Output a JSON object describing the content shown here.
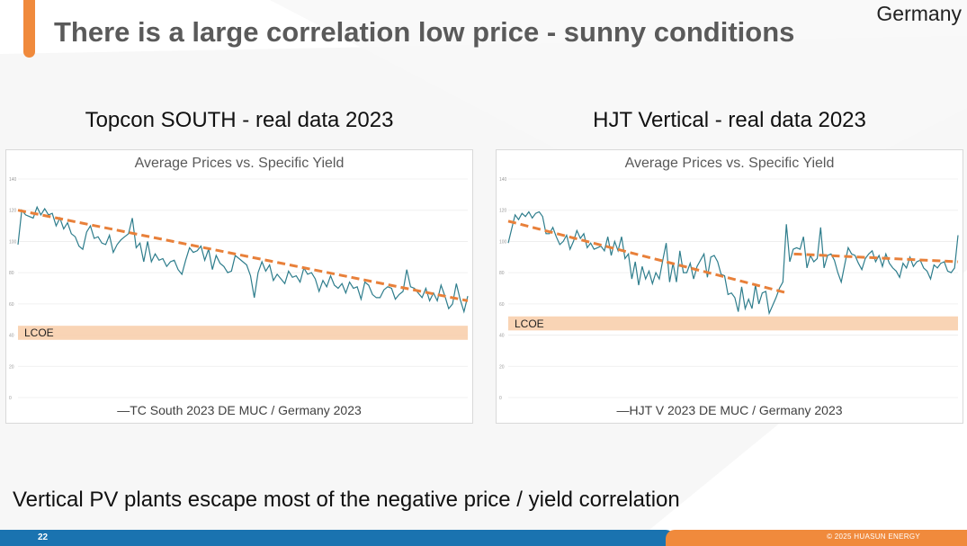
{
  "slide": {
    "title": "There is a large correlation low price - sunny conditions",
    "country": "Germany",
    "footnote": "Vertical PV plants escape most of the negative price / yield correlation",
    "page_number": "22",
    "copyright": "© 2025  HUASUN ENERGY",
    "colors": {
      "accent": "#f08a3c",
      "blue": "#1a73b0",
      "series": "#2e7d8c",
      "trend": "#e8803a",
      "lcoe_band": "#f8cfad"
    }
  },
  "chart_data": [
    {
      "type": "line",
      "panel_title": "Topcon SOUTH - real data 2023",
      "title": "Average Prices vs. Specific Yield",
      "legend": "—TC South 2023 DE MUC / Germany 2023",
      "ylim": [
        0,
        140
      ],
      "yticks": [
        "0",
        "20",
        "40",
        "60",
        "80",
        "100",
        "120",
        "140"
      ],
      "lcoe_label": "LCOE",
      "lcoe_band": [
        37,
        46
      ],
      "trend_segments": [
        {
          "x0": 0,
          "y0": 120,
          "x1": 1,
          "y1": 62
        }
      ],
      "values": [
        98,
        120,
        117,
        116,
        115,
        122,
        117,
        121,
        117,
        118,
        110,
        115,
        108,
        112,
        105,
        103,
        97,
        95,
        106,
        110,
        102,
        103,
        99,
        98,
        104,
        93,
        98,
        101,
        103,
        105,
        115,
        96,
        99,
        87,
        100,
        87,
        92,
        88,
        89,
        84,
        87,
        88,
        82,
        79,
        88,
        96,
        93,
        94,
        97,
        88,
        95,
        82,
        91,
        86,
        84,
        80,
        81,
        91,
        89,
        87,
        85,
        78,
        64,
        80,
        87,
        81,
        85,
        75,
        79,
        76,
        73,
        81,
        77,
        78,
        74,
        83,
        79,
        80,
        76,
        68,
        75,
        71,
        78,
        72,
        70,
        73,
        67,
        74,
        70,
        71,
        63,
        74,
        72,
        66,
        64,
        64,
        69,
        71,
        70,
        63,
        66,
        68,
        82,
        71,
        70,
        67,
        64,
        70,
        62,
        67,
        62,
        72,
        65,
        57,
        60,
        73,
        63,
        55,
        65
      ]
    },
    {
      "type": "line",
      "panel_title": "HJT Vertical - real data 2023",
      "title": "Average Prices vs. Specific Yield",
      "legend": "—HJT V 2023 DE MUC / Germany 2023",
      "ylim": [
        0,
        140
      ],
      "yticks": [
        "0",
        "20",
        "40",
        "60",
        "80",
        "100",
        "120",
        "140"
      ],
      "lcoe_label": "LCOE",
      "lcoe_band": [
        43,
        52
      ],
      "trend_segments": [
        {
          "x0": 0,
          "y0": 113,
          "x1": 0.62,
          "y1": 67
        },
        {
          "x0": 0.635,
          "y0": 92,
          "x1": 1,
          "y1": 87
        }
      ],
      "values": [
        99,
        108,
        117,
        114,
        118,
        116,
        119,
        115,
        118,
        119,
        116,
        105,
        105,
        109,
        103,
        98,
        100,
        104,
        95,
        100,
        107,
        102,
        105,
        96,
        99,
        95,
        96,
        97,
        94,
        103,
        91,
        100,
        94,
        103,
        89,
        92,
        76,
        87,
        72,
        84,
        76,
        81,
        73,
        80,
        76,
        88,
        99,
        74,
        86,
        74,
        94,
        80,
        80,
        86,
        76,
        84,
        88,
        92,
        77,
        90,
        91,
        87,
        79,
        78,
        66,
        67,
        64,
        55,
        71,
        57,
        63,
        57,
        72,
        60,
        67,
        68,
        54,
        59,
        64,
        70,
        74,
        111,
        87,
        95,
        96,
        95,
        103,
        83,
        91,
        87,
        89,
        109,
        83,
        91,
        92,
        88,
        80,
        74,
        85,
        96,
        92,
        91,
        86,
        82,
        89,
        92,
        94,
        87,
        91,
        84,
        92,
        86,
        83,
        81,
        77,
        86,
        83,
        90,
        84,
        87,
        88,
        83,
        81,
        76,
        85,
        83,
        86,
        87,
        81,
        80,
        83,
        104
      ]
    }
  ]
}
